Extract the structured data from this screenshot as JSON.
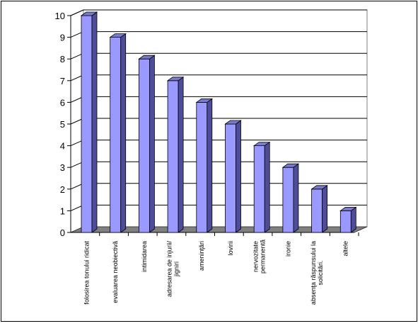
{
  "chart_data": {
    "type": "bar",
    "title": "",
    "xlabel": "",
    "ylabel": "",
    "ylim": [
      0,
      10
    ],
    "yticks": [
      0,
      1,
      2,
      3,
      4,
      5,
      6,
      7,
      8,
      9,
      10
    ],
    "grid": true,
    "legend": "none",
    "categories": [
      [
        "folosirea tonului ridicat"
      ],
      [
        "evaluarea neobiectivă"
      ],
      [
        "intimidarea"
      ],
      [
        "adresarea de injurii/",
        "jigniri"
      ],
      [
        "ameninţări"
      ],
      [
        "lovirii"
      ],
      [
        "nervozitate",
        "permanentă"
      ],
      [
        "ironie"
      ],
      [
        "absenţa răspunsului la",
        "solicitări."
      ],
      [
        "altele"
      ]
    ],
    "values": [
      10,
      9,
      8,
      7,
      6,
      5,
      4,
      3,
      2,
      1
    ],
    "colors": {
      "bar_front": "#9999ff",
      "bar_side": "#4d4d99",
      "bar_top": "#7a7acc",
      "floor": "#808080",
      "wall": "#ffffff",
      "gridline": "#000000"
    }
  }
}
